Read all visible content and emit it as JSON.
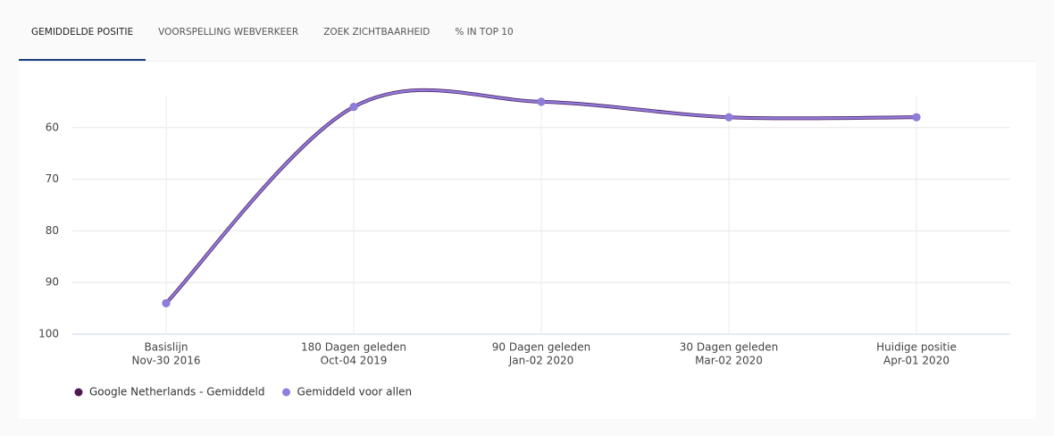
{
  "tabs": [
    "GEMIDDELDE POSITIE",
    "VOORSPELLING WEBVERKEER",
    "ZOEK ZICHTBAARHEID",
    "% IN TOP 10"
  ],
  "chart_data": {
    "type": "line",
    "categories": [
      [
        "Basislijn",
        "Nov-30 2016"
      ],
      [
        "180 Dagen geleden",
        "Oct-04 2019"
      ],
      [
        "90 Dagen geleden",
        "Jan-02 2020"
      ],
      [
        "30 Dagen geleden",
        "Mar-02 2020"
      ],
      [
        "Huidige positie",
        "Apr-01 2020"
      ]
    ],
    "series": [
      {
        "name": "Google Netherlands - Gemiddeld",
        "color": "#4f1753",
        "values": [
          94,
          56,
          55,
          58,
          58
        ]
      },
      {
        "name": "Gemiddeld voor allen",
        "color": "#8e7ddc",
        "values": [
          94,
          56,
          55,
          58,
          58
        ]
      }
    ],
    "ylim": [
      50,
      100
    ],
    "yticks": [
      60,
      70,
      80,
      90,
      100
    ],
    "reversed": true,
    "grid": true
  }
}
